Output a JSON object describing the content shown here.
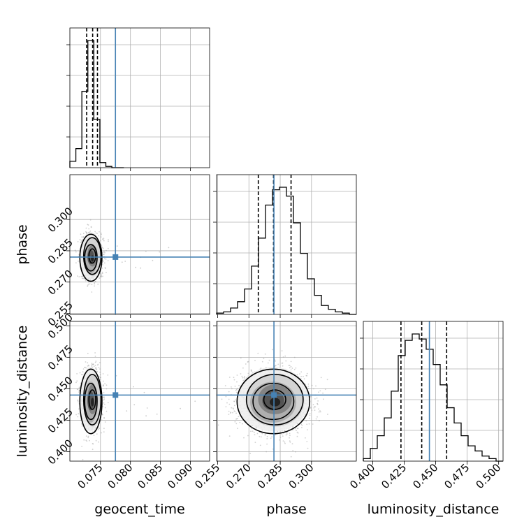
{
  "chart_data": {
    "type": "corner",
    "parameters": [
      "geocent_time",
      "phase",
      "luminosity_distance"
    ],
    "truths": {
      "geocent_time": 0.0775,
      "phase": 0.282,
      "luminosity_distance": 0.445
    },
    "colors": {
      "truth": "#4682b4",
      "hist": "#000000",
      "grid": "#b0b0b0",
      "scatter": "#9a9a9a"
    },
    "grid": true,
    "panels": {
      "geocent_time_hist": {
        "range": [
          0.0699,
          0.0932
        ],
        "xticks": [
          "0.075",
          "0.080",
          "0.085",
          "0.090"
        ],
        "xtick_values": [
          0.075,
          0.08,
          0.085,
          0.09
        ],
        "bin_edges": [
          0.0699,
          0.0709,
          0.0719,
          0.0729,
          0.0739,
          0.0749,
          0.0759,
          0.0769,
          0.0779,
          0.0789
        ],
        "counts": [
          0.05,
          0.15,
          0.6,
          1.0,
          0.38,
          0.04,
          0.01,
          0.0,
          0.0
        ],
        "quantiles": [
          0.0727,
          0.0737,
          0.0745
        ]
      },
      "phase_hist": {
        "range": [
          0.2545,
          0.3215
        ],
        "xticks": [
          "0.255",
          "0.270",
          "0.285",
          "0.300"
        ],
        "xtick_values": [
          0.255,
          0.27,
          0.285,
          0.3
        ],
        "bin_edges": [
          0.2545,
          0.25785,
          0.2612,
          0.26455,
          0.2679,
          0.27125,
          0.2746,
          0.27795,
          0.2813,
          0.28465,
          0.288,
          0.29135,
          0.2947,
          0.29805,
          0.3014,
          0.30475,
          0.3081,
          0.31145,
          0.3148,
          0.31815,
          0.3215
        ],
        "counts": [
          0.01,
          0.02,
          0.05,
          0.1,
          0.2,
          0.38,
          0.6,
          0.86,
          0.98,
          1.0,
          0.93,
          0.72,
          0.48,
          0.28,
          0.15,
          0.07,
          0.04,
          0.02,
          0.01,
          0.0
        ],
        "quantiles": [
          0.2745,
          0.2818,
          0.2902
        ]
      },
      "luminosity_distance_hist": {
        "range": [
          0.3925,
          0.5035
        ],
        "xticks": [
          "0.400",
          "0.425",
          "0.450",
          "0.475",
          "0.500"
        ],
        "xtick_values": [
          0.4,
          0.425,
          0.45,
          0.475,
          0.5
        ],
        "bin_edges": [
          0.3925,
          0.39805,
          0.4036,
          0.40915,
          0.4147,
          0.42025,
          0.4258,
          0.43135,
          0.4369,
          0.44245,
          0.448,
          0.45355,
          0.4591,
          0.46465,
          0.4702,
          0.47575,
          0.4813,
          0.48685,
          0.4924,
          0.49795,
          0.5035
        ],
        "counts": [
          0.02,
          0.1,
          0.2,
          0.34,
          0.55,
          0.83,
          0.95,
          1.0,
          0.96,
          0.88,
          0.76,
          0.6,
          0.42,
          0.3,
          0.2,
          0.12,
          0.08,
          0.04,
          0.02,
          0.0
        ],
        "quantiles": [
          0.4224,
          0.4389,
          0.4587
        ]
      },
      "phase_vs_geocent_time": {
        "xrange": [
          0.0699,
          0.0932
        ],
        "yrange": [
          0.2545,
          0.3215
        ],
        "yticks": [
          "0.255",
          "0.270",
          "0.285",
          "0.300"
        ],
        "ytick_values": [
          0.255,
          0.27,
          0.285,
          0.3
        ],
        "center": [
          0.0735,
          0.282
        ],
        "sigma": [
          0.0009,
          0.0055
        ]
      },
      "luminosity_distance_vs_geocent_time": {
        "xrange": [
          0.0699,
          0.0932
        ],
        "yrange": [
          0.3925,
          0.5035
        ],
        "yticks": [
          "0.400",
          "0.425",
          "0.450",
          "0.475",
          "0.500"
        ],
        "ytick_values": [
          0.4,
          0.425,
          0.45,
          0.475,
          0.5
        ],
        "center": [
          0.0735,
          0.4405
        ],
        "sigma": [
          0.0009,
          0.0125
        ]
      },
      "luminosity_distance_vs_phase": {
        "xrange": [
          0.2545,
          0.3215
        ],
        "yrange": [
          0.3925,
          0.5035
        ],
        "center": [
          0.282,
          0.4405
        ],
        "sigma": [
          0.0085,
          0.0125
        ]
      }
    },
    "labels": {
      "x": [
        "geocent_time",
        "phase",
        "luminosity_distance"
      ],
      "y": [
        "phase",
        "luminosity_distance"
      ]
    }
  }
}
